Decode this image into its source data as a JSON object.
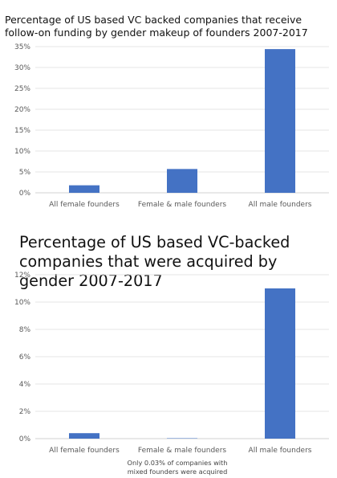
{
  "chart_data": [
    {
      "type": "bar",
      "title": "Percentage of US based VC backed companies that receive follow-on funding by gender makeup of founders 2007-2017",
      "categories": [
        "All female founders",
        "Female & male founders",
        "All male founders"
      ],
      "values": [
        1.8,
        5.7,
        34.4
      ],
      "ylim": [
        0,
        35
      ],
      "yticks": [
        "0%",
        "5%",
        "10%",
        "15%",
        "20%",
        "25%",
        "30%",
        "35%"
      ],
      "bar_color": "#4472c4",
      "grid": true
    },
    {
      "type": "bar",
      "title": "Percentage of US based VC-backed companies that were acquired by gender 2007-2017",
      "categories": [
        "All female founders",
        "Female & male founders",
        "All male founders"
      ],
      "values": [
        0.4,
        0.03,
        11.0
      ],
      "ylim": [
        0,
        12
      ],
      "yticks": [
        "0%",
        "2%",
        "4%",
        "6%",
        "8%",
        "10%",
        "12%"
      ],
      "bar_color": "#4472c4",
      "grid": true,
      "annotation": "Only 0.03% of companies with mixed founders were acquired"
    }
  ]
}
